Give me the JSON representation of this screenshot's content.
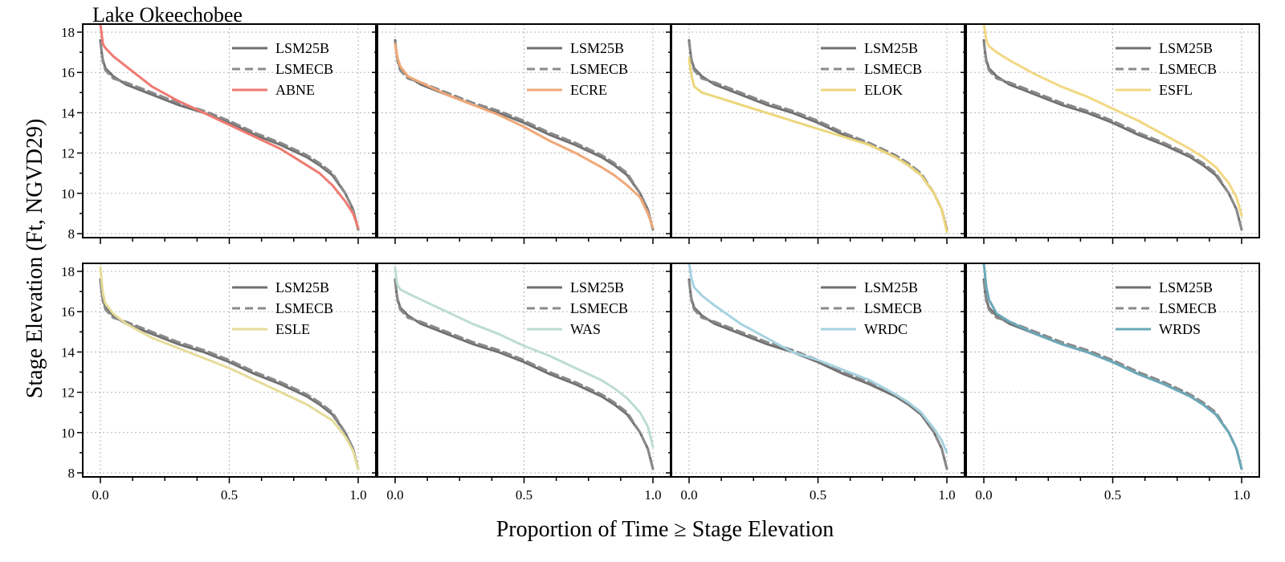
{
  "chart_data": {
    "type": "line",
    "title": "Lake Okeechobee",
    "xlabel": "Proportion of Time ≥ Stage Elevation",
    "ylabel": "Stage Elevation (Ft, NGVD29)",
    "xlim": [
      0,
      1
    ],
    "ylim": [
      7.8,
      18.4
    ],
    "xticks": [
      "0.0",
      "0.5",
      "1.0"
    ],
    "xtick_values": [
      0,
      0.5,
      1
    ],
    "yticks": [
      "8",
      "10",
      "12",
      "14",
      "16",
      "18"
    ],
    "ytick_values": [
      8,
      10,
      12,
      14,
      16,
      18
    ],
    "grid": true,
    "legend_position": "top-right",
    "x": [
      0,
      0.005,
      0.01,
      0.02,
      0.05,
      0.1,
      0.2,
      0.3,
      0.4,
      0.5,
      0.6,
      0.7,
      0.8,
      0.85,
      0.9,
      0.95,
      0.98,
      1
    ],
    "baseline_series": [
      {
        "name": "LSM25B",
        "color": "#707070",
        "dash": "solid",
        "values": [
          17.6,
          17.0,
          16.6,
          16.2,
          15.8,
          15.4,
          14.9,
          14.4,
          14.0,
          13.5,
          12.9,
          12.4,
          11.8,
          11.4,
          10.9,
          10.0,
          9.2,
          8.2
        ]
      },
      {
        "name": "LSMECB",
        "color": "#8a8a8a",
        "dash": "dashed",
        "values": [
          17.5,
          17.0,
          16.5,
          16.1,
          15.7,
          15.5,
          15.0,
          14.5,
          14.1,
          13.6,
          13.0,
          12.5,
          11.9,
          11.5,
          11.0,
          10.0,
          9.2,
          8.2
        ]
      }
    ],
    "panels": [
      {
        "name": "ABNE",
        "color": "#f07a72",
        "values": [
          18.4,
          17.9,
          17.4,
          17.2,
          16.8,
          16.3,
          15.3,
          14.6,
          14.0,
          13.4,
          12.8,
          12.2,
          11.4,
          11.0,
          10.4,
          9.6,
          9.0,
          8.3
        ]
      },
      {
        "name": "ECRE",
        "color": "#f0a878",
        "values": [
          17.4,
          17.0,
          16.7,
          16.3,
          15.8,
          15.5,
          14.9,
          14.4,
          13.9,
          13.3,
          12.6,
          12.0,
          11.3,
          10.9,
          10.4,
          9.8,
          9.0,
          8.3
        ]
      },
      {
        "name": "ELOK",
        "color": "#ecd67a",
        "values": [
          16.7,
          16.2,
          15.8,
          15.3,
          15.0,
          14.8,
          14.4,
          14.0,
          13.6,
          13.2,
          12.8,
          12.4,
          11.8,
          11.4,
          10.9,
          10.0,
          9.2,
          8.1
        ]
      },
      {
        "name": "ESFL",
        "color": "#f2d883",
        "values": [
          18.4,
          18.0,
          17.6,
          17.3,
          17.0,
          16.6,
          15.9,
          15.3,
          14.8,
          14.2,
          13.6,
          12.9,
          12.2,
          11.8,
          11.3,
          10.5,
          9.8,
          8.9
        ]
      },
      {
        "name": "ESLE",
        "color": "#e6dc9a",
        "values": [
          18.2,
          17.5,
          16.9,
          16.4,
          15.9,
          15.4,
          14.7,
          14.2,
          13.7,
          13.2,
          12.6,
          12.0,
          11.4,
          11.0,
          10.6,
          9.8,
          9.1,
          8.2
        ]
      },
      {
        "name": "WAS",
        "color": "#bcdcd4",
        "values": [
          18.2,
          17.6,
          17.3,
          17.1,
          16.9,
          16.6,
          16.0,
          15.4,
          14.9,
          14.3,
          13.8,
          13.2,
          12.6,
          12.2,
          11.7,
          11.0,
          10.3,
          9.3
        ]
      },
      {
        "name": "WRDC",
        "color": "#a6d2e0",
        "values": [
          18.4,
          18.0,
          17.6,
          17.2,
          16.8,
          16.3,
          15.4,
          14.7,
          14.0,
          13.6,
          13.1,
          12.6,
          11.9,
          11.5,
          11.0,
          10.2,
          9.6,
          9.0
        ]
      },
      {
        "name": "WRDS",
        "color": "#6aa8b8",
        "values": [
          18.4,
          17.8,
          17.2,
          16.6,
          15.9,
          15.5,
          14.9,
          14.4,
          14.0,
          13.5,
          12.9,
          12.4,
          11.8,
          11.4,
          10.9,
          10.0,
          9.2,
          8.2
        ]
      }
    ]
  }
}
